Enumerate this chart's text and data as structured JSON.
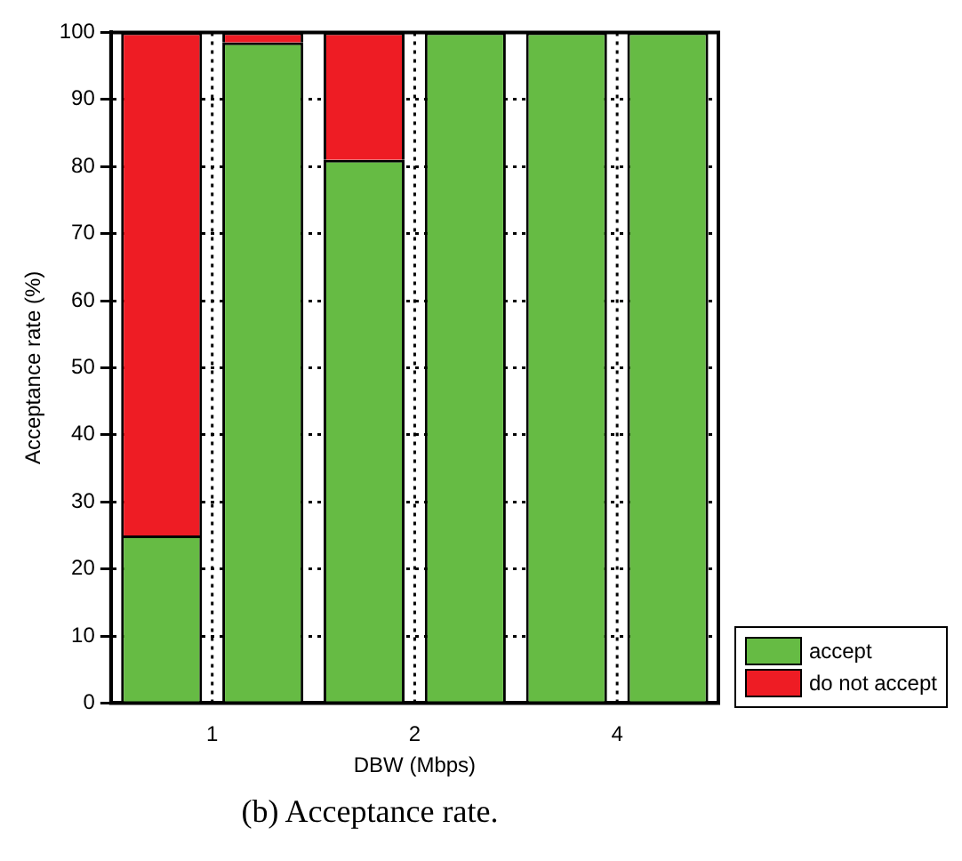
{
  "chart_data": {
    "type": "bar",
    "stacked": true,
    "categories": [
      "1",
      null,
      "2",
      null,
      "4",
      null
    ],
    "series": [
      {
        "name": "accept",
        "color": "#66bb44",
        "values": [
          25,
          98.5,
          81,
          100,
          100,
          100
        ]
      },
      {
        "name": "do not accept",
        "color": "#ee1c24",
        "values": [
          75,
          1.5,
          19,
          0,
          0,
          0
        ]
      }
    ],
    "xlabel": "DBW (Mbps)",
    "ylabel": "Acceptance rate (%)",
    "ylim": [
      0,
      100
    ],
    "yticks": [
      0,
      10,
      20,
      30,
      40,
      50,
      60,
      70,
      80,
      90,
      100
    ],
    "grid": true,
    "line_style": "dotted",
    "legend": "bottom right",
    "annotations": [
      "(b) Acceptance rate."
    ]
  }
}
